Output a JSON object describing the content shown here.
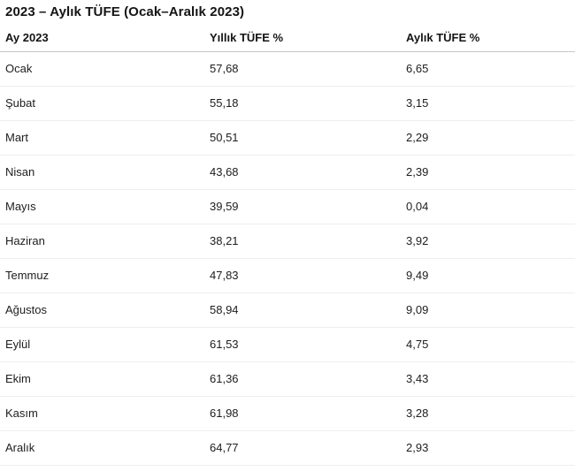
{
  "page_title": "2023 – Aylık TÜFE (Ocak–Aralık 2023)",
  "table": {
    "columns": [
      "Ay 2023",
      "Yıllık TÜFE %",
      "Aylık TÜFE %"
    ],
    "rows": [
      {
        "month": "Ocak",
        "annual": "57,68",
        "monthly": "6,65"
      },
      {
        "month": "Şubat",
        "annual": "55,18",
        "monthly": "3,15"
      },
      {
        "month": "Mart",
        "annual": "50,51",
        "monthly": "2,29"
      },
      {
        "month": "Nisan",
        "annual": "43,68",
        "monthly": "2,39"
      },
      {
        "month": "Mayıs",
        "annual": "39,59",
        "monthly": "0,04"
      },
      {
        "month": "Haziran",
        "annual": "38,21",
        "monthly": "3,92"
      },
      {
        "month": "Temmuz",
        "annual": "47,83",
        "monthly": "9,49"
      },
      {
        "month": "Ağustos",
        "annual": "58,94",
        "monthly": "9,09"
      },
      {
        "month": "Eylül",
        "annual": "61,53",
        "monthly": "4,75"
      },
      {
        "month": "Ekim",
        "annual": "61,36",
        "monthly": "3,43"
      },
      {
        "month": "Kasım",
        "annual": "61,98",
        "monthly": "3,28"
      },
      {
        "month": "Aralık",
        "annual": "64,77",
        "monthly": "2,93"
      }
    ]
  },
  "colors": {
    "background": "#ffffff",
    "text": "#1d1d1d",
    "header_border": "#c6c6c6",
    "row_border": "#eeeeee"
  },
  "chart_data": {
    "type": "table",
    "title": "2023 – Aylık TÜFE (Ocak–Aralık 2023)",
    "columns": [
      "Ay 2023",
      "Yıllık TÜFE %",
      "Aylık TÜFE %"
    ],
    "categories": [
      "Ocak",
      "Şubat",
      "Mart",
      "Nisan",
      "Mayıs",
      "Haziran",
      "Temmuz",
      "Ağustos",
      "Eylül",
      "Ekim",
      "Kasım",
      "Aralık"
    ],
    "series": [
      {
        "name": "Yıllık TÜFE %",
        "values": [
          57.68,
          55.18,
          50.51,
          43.68,
          39.59,
          38.21,
          47.83,
          58.94,
          61.53,
          61.36,
          61.98,
          64.77
        ]
      },
      {
        "name": "Aylık TÜFE %",
        "values": [
          6.65,
          3.15,
          2.29,
          2.39,
          0.04,
          3.92,
          9.49,
          9.09,
          4.75,
          3.43,
          3.28,
          2.93
        ]
      }
    ],
    "decimal_separator": ",",
    "grid": "horizontal-only",
    "legend": "none"
  }
}
